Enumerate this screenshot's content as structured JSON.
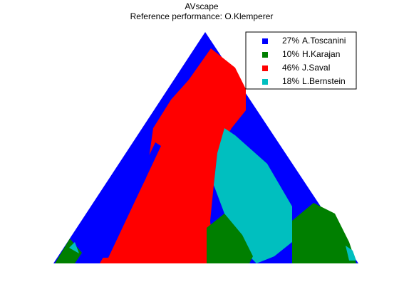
{
  "chart_data": {
    "type": "scape",
    "title": "AVscape",
    "subtitle": "Reference performance: O.Klemperer",
    "series": [
      {
        "name": "A.Toscanini",
        "color": "#0000ff",
        "values": [
          27
        ],
        "value_labels": [
          "27%"
        ]
      },
      {
        "name": "H.Karajan",
        "color": "#007f00",
        "values": [
          10
        ],
        "value_labels": [
          "10%"
        ]
      },
      {
        "name": "J.Saval",
        "color": "#ff0000",
        "values": [
          46
        ],
        "value_labels": [
          "46%"
        ]
      },
      {
        "name": "L.Bernstein",
        "color": "#00bfbf",
        "values": [
          18
        ],
        "value_labels": [
          "18%"
        ]
      }
    ],
    "legend": "upper right"
  }
}
